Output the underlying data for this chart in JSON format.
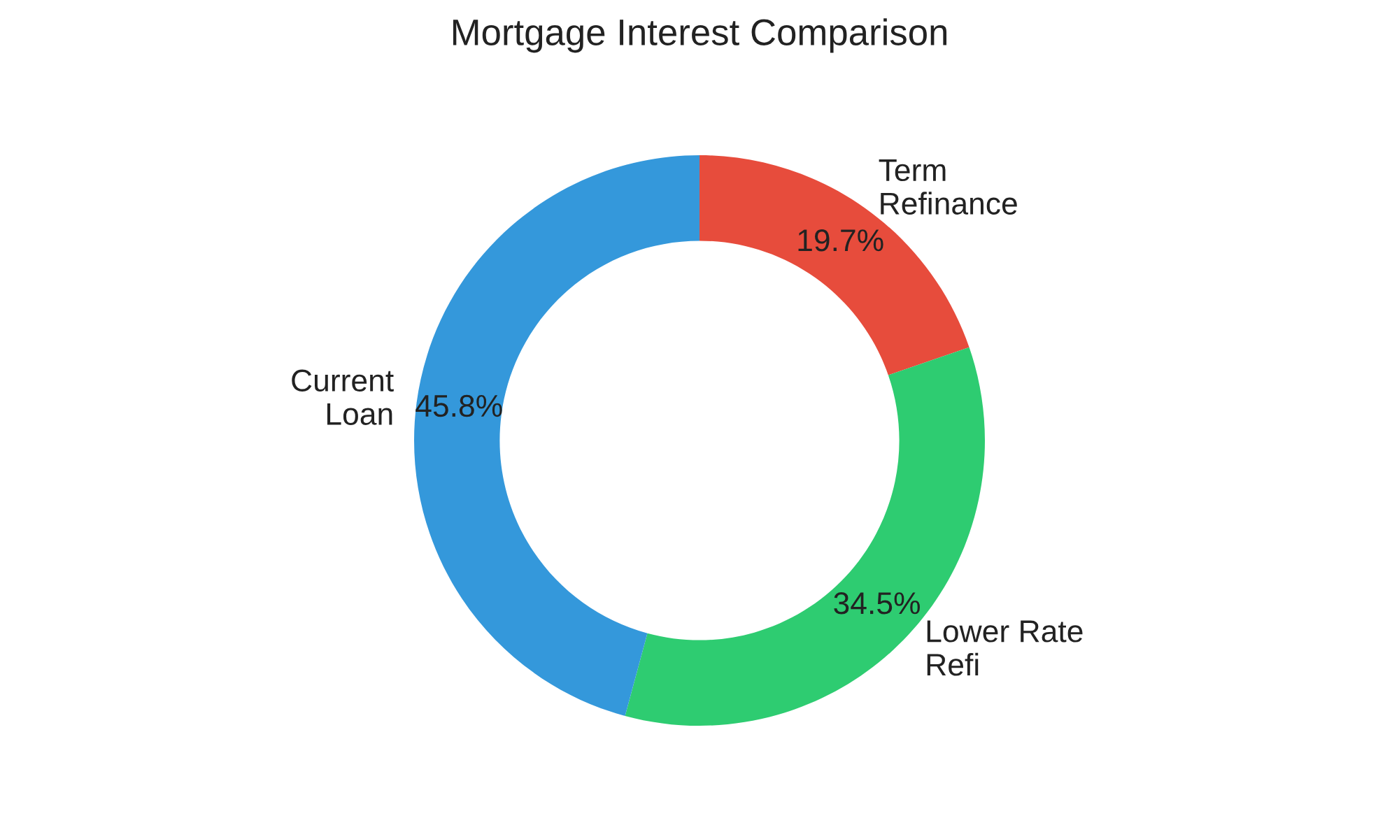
{
  "chart_data": {
    "type": "donut",
    "title": "Mortgage Interest Comparison",
    "categories": [
      "Term\nRefinance",
      "Lower Rate\nRefi",
      "Current\nLoan"
    ],
    "values": [
      19.7,
      34.5,
      45.8
    ],
    "colors": [
      "#e74c3c",
      "#2ecc71",
      "#3498db"
    ],
    "value_labels": [
      "19.7%",
      "34.5%",
      "45.8%"
    ]
  }
}
